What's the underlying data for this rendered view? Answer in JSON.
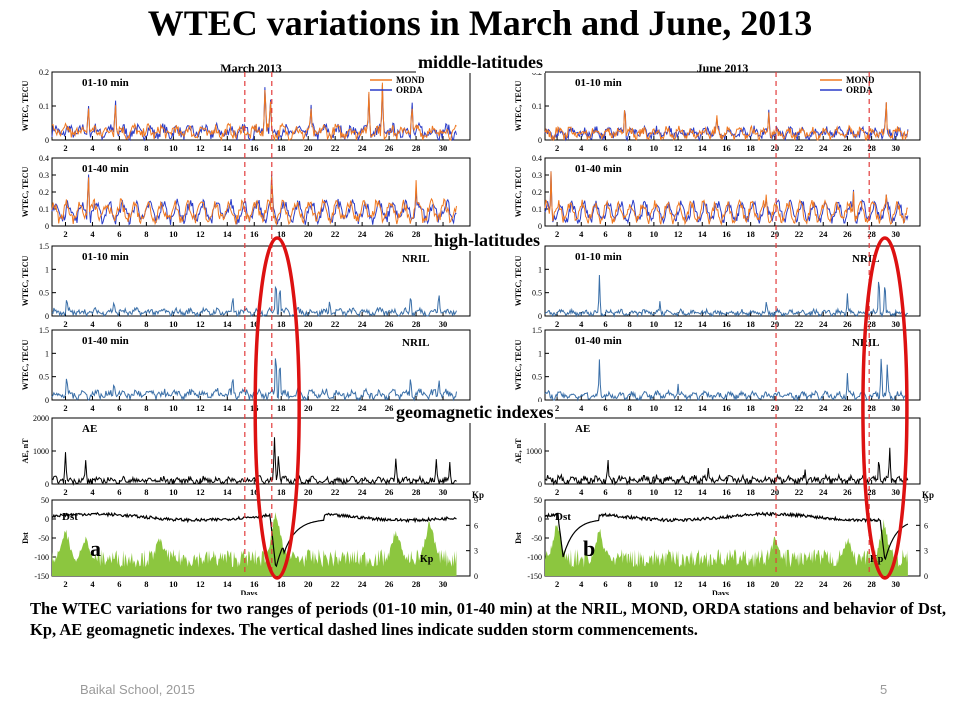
{
  "slide": {
    "title": "WTEC variations in March and June, 2013",
    "labels": {
      "middle": "middle-latitudes",
      "high": "high-latitudes",
      "geomagnetic": "geomagnetic indexes"
    },
    "caption": "The WTEC variations for two ranges of periods (01-10 min, 01-40 min) at the NRIL, MOND, ORDA stations and behavior of Dst, Kp, AE geomagnetic indexes. The vertical dashed lines indicate sudden storm commencements.",
    "footer_left": "Baikal School, 2015",
    "footer_right": "5"
  },
  "chart_data": [
    {
      "type": "line",
      "panel_group": "a",
      "header": "March   2013",
      "xlabel": "Days",
      "x_ticks": [
        2,
        4,
        6,
        8,
        10,
        12,
        14,
        16,
        18,
        20,
        22,
        24,
        26,
        28,
        30
      ],
      "xlim": [
        1,
        32
      ],
      "storm_commencement_days": [
        15.3,
        17.3
      ],
      "panel_letter": "a",
      "colors": {
        "MOND": "#f07820",
        "ORDA": "#2a3cc8",
        "NRIL": "#3a6fa8",
        "AE": "#000000",
        "Dst": "#000000",
        "Kp": "#8cc63f",
        "storm_line": "#e23c3c",
        "ellipse": "#dd1111"
      },
      "subplots": [
        {
          "label": "01-10 min",
          "ylabel": "WTEC, TECU",
          "ylim": [
            0,
            0.2
          ],
          "yticks": [
            0,
            0.1,
            0.2
          ],
          "legend": [
            "MOND",
            "ORDA"
          ],
          "base": 0.03,
          "noise": 0.03,
          "spikes": [
            [
              3.7,
              0.12
            ],
            [
              5.7,
              0.14
            ],
            [
              16.8,
              0.2
            ],
            [
              17.2,
              0.16
            ],
            [
              20.2,
              0.12
            ],
            [
              24.5,
              0.16
            ],
            [
              25.5,
              0.18
            ],
            [
              27.7,
              0.13
            ]
          ]
        },
        {
          "label": "01-40 min",
          "ylabel": "WTEC, TECU",
          "ylim": [
            0,
            0.4
          ],
          "yticks": [
            0,
            0.1,
            0.2,
            0.3,
            0.4
          ],
          "legend": [],
          "base": 0.12,
          "noise": 0.06,
          "spikes": [
            [
              3.7,
              0.35
            ],
            [
              17.3,
              0.38
            ],
            [
              28,
              0.27
            ]
          ]
        },
        {
          "label": "01-10 min",
          "ylabel": "WTEC, TECU",
          "ylim": [
            0,
            1.5
          ],
          "yticks": [
            0,
            0.5,
            1,
            1.5
          ],
          "legend": [
            "NRIL"
          ],
          "base": 0.1,
          "noise": 0.12,
          "spikes": [
            [
              2.1,
              0.45
            ],
            [
              5.6,
              0.4
            ],
            [
              14.4,
              0.5
            ],
            [
              17.6,
              1.0
            ],
            [
              17.9,
              0.8
            ],
            [
              21.6,
              0.4
            ],
            [
              27.6,
              0.55
            ],
            [
              29.7,
              0.6
            ]
          ]
        },
        {
          "label": "01-40 min",
          "ylabel": "WTEC, TECU",
          "ylim": [
            0,
            1.5
          ],
          "yticks": [
            0,
            0.5,
            1,
            1.5
          ],
          "legend": [
            "NRIL"
          ],
          "base": 0.15,
          "noise": 0.15,
          "spikes": [
            [
              2.1,
              0.6
            ],
            [
              5.6,
              0.5
            ],
            [
              14.4,
              0.6
            ],
            [
              17.6,
              1.4
            ],
            [
              17.9,
              1.0
            ],
            [
              27.6,
              0.6
            ],
            [
              29.7,
              0.55
            ]
          ]
        },
        {
          "label": "AE",
          "ylabel": "AE, nT",
          "ylim": [
            0,
            2000
          ],
          "yticks": [
            0,
            1000,
            2000
          ],
          "legend": [],
          "base": 120,
          "noise": 180,
          "spikes": [
            [
              2,
              1000
            ],
            [
              3.5,
              750
            ],
            [
              16.4,
              400
            ],
            [
              17.5,
              1700
            ],
            [
              17.8,
              1100
            ],
            [
              26.5,
              900
            ],
            [
              29.5,
              850
            ],
            [
              30.5,
              700
            ]
          ]
        },
        {
          "label": "Dst",
          "ylabel": "Dst",
          "ylim": [
            -150,
            50
          ],
          "yticks": [
            -150,
            -100,
            -50,
            0,
            50
          ],
          "y2label": "Kp",
          "y2lim": [
            0,
            9
          ],
          "y2ticks": [
            0,
            3,
            6,
            9
          ],
          "legend": [
            "Kp"
          ],
          "dst_min": [
            [
              17.6,
              -130
            ],
            [
              18.2,
              -90
            ]
          ],
          "kp_peaks": [
            [
              2,
              5
            ],
            [
              3.5,
              4
            ],
            [
              9,
              4
            ],
            [
              17.6,
              7
            ],
            [
              26.5,
              5
            ],
            [
              29,
              6
            ]
          ]
        }
      ]
    },
    {
      "type": "line",
      "panel_group": "b",
      "header": "June   2013",
      "xlabel": "Days",
      "x_ticks": [
        2,
        4,
        6,
        8,
        10,
        12,
        14,
        16,
        18,
        20,
        22,
        24,
        26,
        28,
        30
      ],
      "xlim": [
        1,
        32
      ],
      "storm_commencement_days": [
        20.1,
        27.8
      ],
      "panel_letter": "b",
      "colors": {
        "MOND": "#f07820",
        "ORDA": "#2a3cc8",
        "NRIL": "#3a6fa8",
        "AE": "#000000",
        "Dst": "#000000",
        "Kp": "#8cc63f",
        "storm_line": "#e23c3c",
        "ellipse": "#dd1111"
      },
      "subplots": [
        {
          "label": "01-10 min",
          "ylabel": "WTEC, TECU",
          "ylim": [
            0,
            0.2
          ],
          "yticks": [
            0,
            0.1,
            0.2
          ],
          "legend": [
            "MOND",
            "ORDA"
          ],
          "base": 0.025,
          "noise": 0.025,
          "spikes": [
            [
              7.6,
              0.13
            ],
            [
              15.2,
              0.09
            ],
            [
              19.5,
              0.1
            ],
            [
              29.2,
              0.13
            ]
          ]
        },
        {
          "label": "01-40 min",
          "ylabel": "WTEC, TECU",
          "ylim": [
            0,
            0.4
          ],
          "yticks": [
            0,
            0.1,
            0.2,
            0.3,
            0.4
          ],
          "legend": [],
          "base": 0.12,
          "noise": 0.05,
          "spikes": [
            [
              1.5,
              0.33
            ],
            [
              19.3,
              0.22
            ],
            [
              26.5,
              0.24
            ],
            [
              29.2,
              0.22
            ]
          ]
        },
        {
          "label": "01-10 min",
          "ylabel": "WTEC, TECU",
          "ylim": [
            0,
            1.5
          ],
          "yticks": [
            0,
            0.5,
            1,
            1.5
          ],
          "legend": [
            "NRIL"
          ],
          "base": 0.08,
          "noise": 0.1,
          "spikes": [
            [
              5.5,
              0.9
            ],
            [
              10.5,
              0.35
            ],
            [
              19.3,
              0.4
            ],
            [
              26,
              0.5
            ],
            [
              28.6,
              1.1
            ],
            [
              29.1,
              1.0
            ]
          ]
        },
        {
          "label": "01-40 min",
          "ylabel": "WTEC, TECU",
          "ylim": [
            0,
            1.5
          ],
          "yticks": [
            0,
            0.5,
            1,
            1.5
          ],
          "legend": [
            "NRIL"
          ],
          "base": 0.12,
          "noise": 0.12,
          "spikes": [
            [
              5.5,
              1.0
            ],
            [
              12,
              0.4
            ],
            [
              26,
              0.6
            ],
            [
              28.8,
              1.2
            ],
            [
              29.3,
              0.9
            ]
          ]
        },
        {
          "label": "AE",
          "ylabel": "AE, nT",
          "ylim": [
            0,
            2000
          ],
          "yticks": [
            0,
            1000,
            2000
          ],
          "legend": [],
          "base": 150,
          "noise": 200,
          "spikes": [
            [
              6.2,
              900
            ],
            [
              14.5,
              600
            ],
            [
              22.5,
              500
            ],
            [
              28.6,
              1000
            ],
            [
              29.5,
              1350
            ]
          ]
        },
        {
          "label": "Dst",
          "ylabel": "Dst",
          "ylim": [
            -150,
            50
          ],
          "yticks": [
            -150,
            -100,
            -50,
            0,
            50
          ],
          "y2label": "Kp",
          "y2lim": [
            0,
            9
          ],
          "y2ticks": [
            0,
            3,
            6,
            9
          ],
          "legend": [
            "Kp"
          ],
          "dst_min": [
            [
              2.5,
              -100
            ],
            [
              29.1,
              -110
            ]
          ],
          "kp_peaks": [
            [
              2,
              6
            ],
            [
              5.5,
              5
            ],
            [
              20,
              4
            ],
            [
              26,
              4
            ],
            [
              29,
              6
            ]
          ]
        }
      ]
    }
  ]
}
